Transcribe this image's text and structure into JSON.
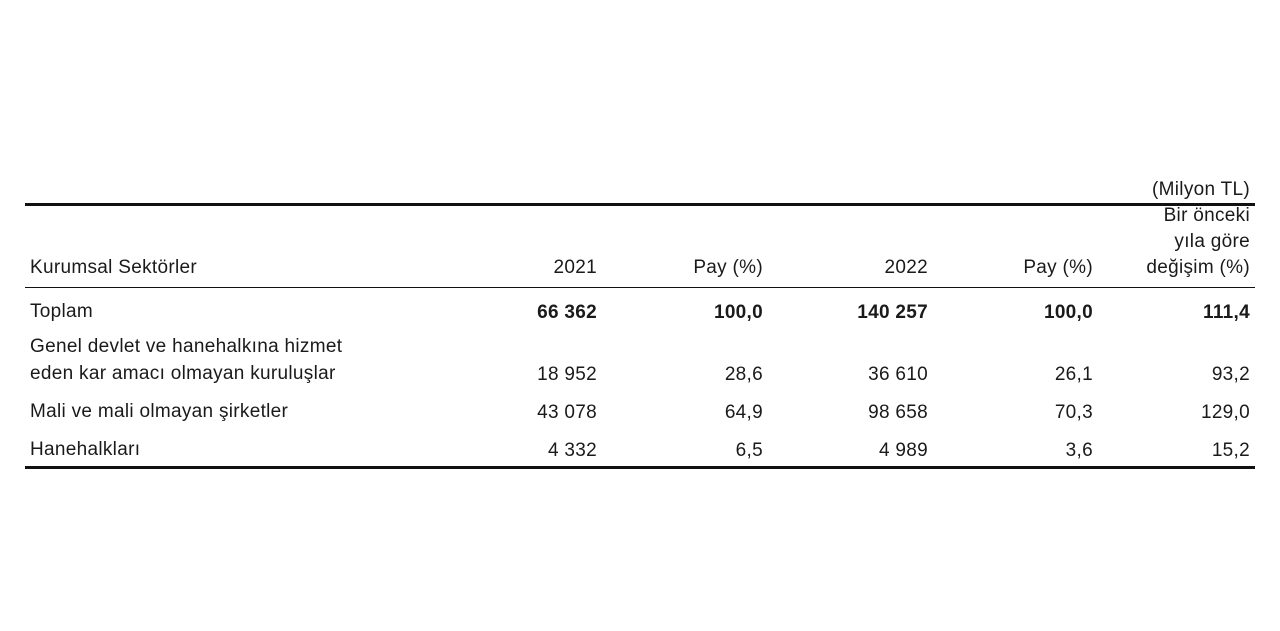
{
  "header": {
    "unit": "(Milyon TL)",
    "columns": [
      [
        "Kurumsal Sektörler"
      ],
      [
        "2021"
      ],
      [
        "Pay (%)"
      ],
      [
        "2022"
      ],
      [
        "Pay (%)"
      ],
      [
        "Bir önceki",
        "yıla göre",
        "değişim (%)"
      ]
    ]
  },
  "table": {
    "rows": [
      {
        "label": [
          "Toplam"
        ],
        "cells": [
          "66 362",
          "100,0",
          "140 257",
          "100,0",
          "111,4"
        ]
      },
      {
        "label": [
          "Genel devlet ve hanehalkına hizmet",
          "eden kar amacı olmayan kuruluşlar"
        ],
        "cells": [
          "18 952",
          "28,6",
          "36 610",
          "26,1",
          "93,2"
        ]
      },
      {
        "label": [
          "Mali ve mali olmayan şirketler"
        ],
        "cells": [
          "43 078",
          "64,9",
          "98 658",
          "70,3",
          "129,0"
        ]
      },
      {
        "label": [
          "Hanehalkları"
        ],
        "cells": [
          "4 332",
          "6,5",
          "4 989",
          "3,6",
          "15,2"
        ]
      }
    ]
  }
}
